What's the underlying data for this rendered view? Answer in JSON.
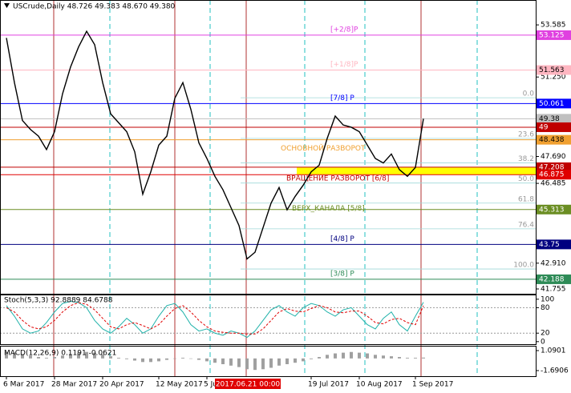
{
  "chart_data": [
    {
      "type": "line",
      "title": "USCrude,Daily  48.726 49.383 48.670 49.380",
      "categories": [
        "6 Mar 2017",
        null,
        null,
        null,
        null,
        null,
        "28 Mar 2017",
        null,
        null,
        null,
        null,
        null,
        "20 Apr 2017",
        null,
        null,
        null,
        null,
        null,
        null,
        "12 May 2017",
        null,
        null,
        null,
        null,
        null,
        "5 Jun 2017",
        null,
        null,
        null,
        null,
        "2017.06.21 00:00",
        null,
        null,
        null,
        null,
        null,
        null,
        null,
        "19 Jul 2017",
        null,
        null,
        null,
        null,
        null,
        "10 Aug 2017",
        null,
        null,
        null,
        null,
        null,
        null,
        "1 Sep 2017",
        null
      ],
      "series": [
        {
          "color": "#000000",
          "values": [
            53.0,
            51.0,
            49.3,
            48.9,
            48.6,
            48.0,
            48.8,
            50.5,
            51.7,
            52.6,
            53.3,
            52.7,
            51.0,
            49.6,
            49.2,
            48.8,
            47.9,
            46.0,
            47.0,
            48.2,
            48.6,
            50.3,
            51.0,
            49.8,
            48.3,
            47.6,
            46.8,
            46.2,
            45.4,
            44.6,
            43.1,
            43.4,
            44.5,
            45.6,
            46.3,
            45.3,
            45.9,
            46.4,
            47.0,
            47.3,
            48.5,
            49.5,
            49.1,
            49.0,
            48.8,
            48.2,
            47.6,
            47.4,
            47.8,
            47.1,
            46.8,
            47.2,
            49.38
          ]
        }
      ],
      "ylim": [
        41.54,
        54.7
      ],
      "yticks": [
        53.585,
        {
          "value": 51.25,
          "label": "51.250"
        },
        {
          "value": 47.69,
          "label": "47.690"
        },
        46.485,
        {
          "value": 42.91,
          "label": "42.910"
        },
        41.755
      ],
      "levels": [
        {
          "value": 53.125,
          "color": "#e040e0",
          "label": "[+2/8]P"
        },
        {
          "value": 51.563,
          "color": "#ffb6c1",
          "label": "[+1/8]P"
        },
        {
          "value": 50.061,
          "color": "#0000ff",
          "label": "[7/8] P"
        },
        {
          "value": 49.38,
          "color": "#c0c0c0"
        },
        {
          "value": 49.0,
          "color": "#c00000"
        },
        {
          "value": 48.438,
          "color": "#f0a030"
        },
        {
          "value": 47.208,
          "color": "#c00000"
        },
        {
          "value": 46.875,
          "color": "#e00000"
        },
        {
          "value": 45.313,
          "color": "#6b8e23"
        },
        {
          "value": 43.75,
          "color": "#000080",
          "label": "[4/8] P"
        },
        {
          "value": 42.188,
          "color": "#2e8b57",
          "label": "[3/8] P"
        }
      ],
      "fib": [
        {
          "label": "0.0",
          "value": 50.32
        },
        {
          "label": "23.6",
          "value": 48.5
        },
        {
          "label": "38.2",
          "value": 47.4
        },
        {
          "label": "50.0",
          "value": 46.5
        },
        {
          "label": "61.8",
          "value": 45.6
        },
        {
          "label": "76.4",
          "value": 44.45
        },
        {
          "label": "100.0",
          "value": 42.65
        }
      ],
      "annotations": [
        {
          "text": "ОСНОВНОЙ РАЗВОРОТ",
          "value": 48.05,
          "color": "#f0a030"
        },
        {
          "text": "ВРАЩЕНИЕ РАЗВОРОТ [6/8]",
          "value": 46.7,
          "color": "#c00000"
        },
        {
          "text": "ВЕРХ_КАНАЛА [5/8]",
          "value": 45.35,
          "color": "#6b8e23"
        }
      ]
    },
    {
      "type": "line",
      "title": "Stoch(5,3,3) 92.8889 84.6788",
      "series": [
        {
          "color": "#20b2aa",
          "values": [
            85,
            60,
            30,
            20,
            25,
            45,
            70,
            90,
            95,
            92,
            80,
            50,
            30,
            20,
            35,
            55,
            40,
            20,
            30,
            60,
            85,
            90,
            70,
            40,
            25,
            30,
            20,
            15,
            25,
            20,
            10,
            25,
            50,
            75,
            85,
            70,
            60,
            80,
            90,
            85,
            70,
            60,
            75,
            80,
            60,
            40,
            30,
            55,
            70,
            40,
            25,
            60,
            92.89
          ]
        },
        {
          "color": "#e00000",
          "values": [
            80,
            70,
            50,
            35,
            30,
            35,
            50,
            70,
            85,
            92,
            88,
            75,
            55,
            35,
            30,
            40,
            45,
            38,
            30,
            40,
            60,
            78,
            85,
            70,
            50,
            35,
            25,
            22,
            20,
            20,
            18,
            18,
            30,
            50,
            70,
            78,
            72,
            70,
            78,
            85,
            80,
            70,
            68,
            72,
            72,
            60,
            45,
            42,
            52,
            55,
            45,
            40,
            84.68
          ]
        }
      ],
      "ylim": [
        -6,
        111
      ],
      "yticks": [
        0,
        20,
        80,
        100
      ]
    },
    {
      "type": "bar",
      "title": "MACD(12,26,9) 0.1191 -0.0621",
      "color": "#a0a0a0",
      "values": [
        0.9,
        0.8,
        0.6,
        0.4,
        0.2,
        0.1,
        0.2,
        0.4,
        0.6,
        0.8,
        0.9,
        0.8,
        0.6,
        0.3,
        0.1,
        -0.1,
        -0.3,
        -0.5,
        -0.5,
        -0.4,
        -0.2,
        0,
        0.1,
        0,
        -0.2,
        -0.4,
        -0.6,
        -0.8,
        -1.0,
        -1.2,
        -1.5,
        -1.6,
        -1.5,
        -1.3,
        -1.0,
        -0.8,
        -0.6,
        -0.4,
        -0.1,
        0.2,
        0.5,
        0.7,
        0.8,
        0.9,
        0.8,
        0.7,
        0.5,
        0.4,
        0.3,
        0.2,
        0.1,
        0.1,
        0.1191
      ],
      "ylim": [
        -2.47,
        1.76
      ],
      "yticks": [
        1.0901,
        -1.6906
      ]
    }
  ]
}
